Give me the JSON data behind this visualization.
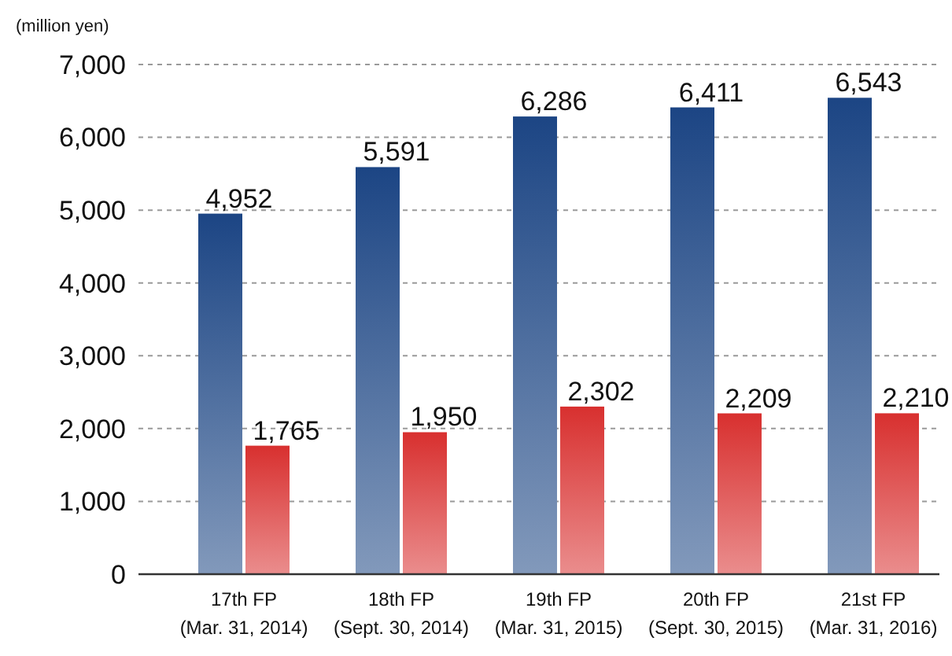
{
  "chart_data": {
    "type": "bar",
    "ylabel": "(million yen)",
    "categories": [
      "17th FP\n(Mar. 31, 2014)",
      "18th FP\n(Sept. 30, 2014)",
      "19th FP\n(Mar. 31, 2015)",
      "20th FP\n(Sept. 30, 2015)",
      "21st FP\n(Mar. 31, 2016)"
    ],
    "series": [
      {
        "color": "#1c4584",
        "values": [
          4952,
          5591,
          6286,
          6411,
          6543
        ],
        "value_labels": [
          "4,952",
          "5,591",
          "6,286",
          "6,411",
          "6,543"
        ]
      },
      {
        "color": "#d8302f",
        "values": [
          1765,
          1950,
          2302,
          2209,
          2210
        ],
        "value_labels": [
          "1,765",
          "1,950",
          "2,302",
          "2,209",
          "2,210"
        ]
      }
    ],
    "ylim": [
      0,
      7000
    ],
    "yticks": [
      {
        "value": 0,
        "label": "0"
      },
      {
        "value": 1000,
        "label": "1,000"
      },
      {
        "value": 2000,
        "label": "2,000"
      },
      {
        "value": 3000,
        "label": "3,000"
      },
      {
        "value": 4000,
        "label": "4,000"
      },
      {
        "value": 5000,
        "label": "5,000"
      },
      {
        "value": 6000,
        "label": "6,000"
      },
      {
        "value": 7000,
        "label": "7,000"
      }
    ],
    "grid": "y"
  }
}
